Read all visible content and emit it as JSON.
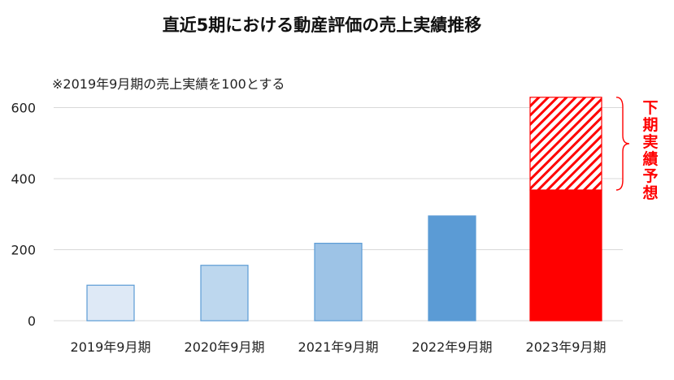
{
  "chart_data": {
    "type": "bar",
    "title": "直近5期における動産評価の売上実績推移",
    "note": "※2019年9月期の売上実績を100とする",
    "categories": [
      "2019年9月期",
      "2020年9月期",
      "2021年9月期",
      "2022年9月期",
      "2023年9月期"
    ],
    "values": [
      100,
      156,
      218,
      295,
      368
    ],
    "forecast": {
      "category": "2023年9月期",
      "additional": 261,
      "total": 629
    },
    "annotation": "下期実績予想",
    "ylim": [
      0,
      680
    ],
    "yticks": [
      "0",
      "200",
      "400",
      "600"
    ],
    "ytick_values": [
      0,
      200,
      400,
      600
    ],
    "grid": true,
    "colors": {
      "fills": [
        "#dee9f6",
        "#bdd7ee",
        "#9dc3e6",
        "#5b9bd5",
        "#ff0000"
      ],
      "borders": [
        "#5b9bd5",
        "#5b9bd5",
        "#5b9bd5",
        "#5b9bd5",
        "#ff0000"
      ],
      "forecast": "#ff0000",
      "grid": "#d9d9d9",
      "annotation": "#ff0000"
    }
  }
}
